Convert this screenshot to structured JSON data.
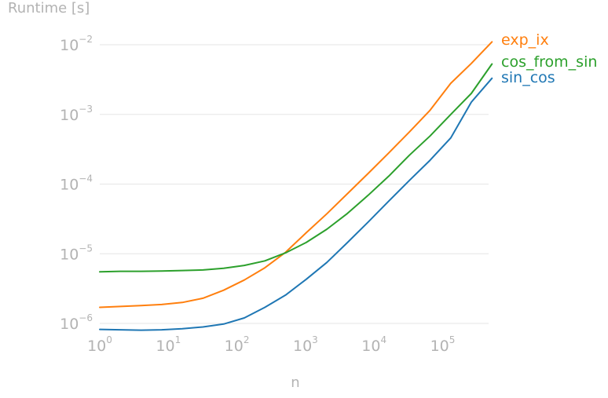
{
  "chart_data": {
    "type": "line",
    "title": "",
    "ylabel": "Runtime [s]",
    "xlabel": "n",
    "xscale": "log",
    "yscale": "log",
    "xlim": [
      1,
      524288
    ],
    "ylim": [
      1e-06,
      0.01
    ],
    "grid": "horizontal",
    "legend": "right-end-of-lines",
    "x_ticks": [
      {
        "base": "10",
        "exp": "0",
        "value": 1
      },
      {
        "base": "10",
        "exp": "1",
        "value": 10
      },
      {
        "base": "10",
        "exp": "2",
        "value": 100
      },
      {
        "base": "10",
        "exp": "3",
        "value": 1000
      },
      {
        "base": "10",
        "exp": "4",
        "value": 10000
      },
      {
        "base": "10",
        "exp": "5",
        "value": 100000
      }
    ],
    "y_ticks": [
      {
        "base": "10",
        "exp": "−6",
        "value": 1e-06
      },
      {
        "base": "10",
        "exp": "−5",
        "value": 1e-05
      },
      {
        "base": "10",
        "exp": "−4",
        "value": 0.0001
      },
      {
        "base": "10",
        "exp": "−3",
        "value": 0.001
      },
      {
        "base": "10",
        "exp": "−2",
        "value": 0.01
      }
    ],
    "x": [
      1,
      2,
      4,
      8,
      16,
      32,
      64,
      128,
      256,
      512,
      1024,
      2048,
      4096,
      8192,
      16384,
      32768,
      65536,
      131072,
      262144,
      524288
    ],
    "series": [
      {
        "name": "exp_ix",
        "color": "#ff7f0e",
        "values": [
          1.7e-06,
          1.75e-06,
          1.8e-06,
          1.87e-06,
          2e-06,
          2.3e-06,
          3e-06,
          4.2e-06,
          6.3e-06,
          1.05e-05,
          2e-05,
          3.75e-05,
          7.3e-05,
          0.000142,
          0.00028,
          0.00056,
          0.00115,
          0.0028,
          0.0054,
          0.011
        ]
      },
      {
        "name": "cos_from_sin",
        "color": "#2ca02c",
        "values": [
          5.5e-06,
          5.6e-06,
          5.6e-06,
          5.65e-06,
          5.75e-06,
          5.85e-06,
          6.2e-06,
          6.8e-06,
          7.9e-06,
          1.03e-05,
          1.45e-05,
          2.25e-05,
          3.8e-05,
          6.9e-05,
          0.00013,
          0.00026,
          0.00049,
          0.001,
          0.002,
          0.0053
        ]
      },
      {
        "name": "sin_cos",
        "color": "#1f77b4",
        "values": [
          8.2e-07,
          8.1e-07,
          8e-07,
          8.1e-07,
          8.4e-07,
          8.9e-07,
          9.8e-07,
          1.2e-06,
          1.7e-06,
          2.55e-06,
          4.3e-06,
          7.5e-06,
          1.45e-05,
          2.85e-05,
          5.7e-05,
          0.000113,
          0.00022,
          0.00046,
          0.0015,
          0.0033
        ]
      }
    ]
  }
}
